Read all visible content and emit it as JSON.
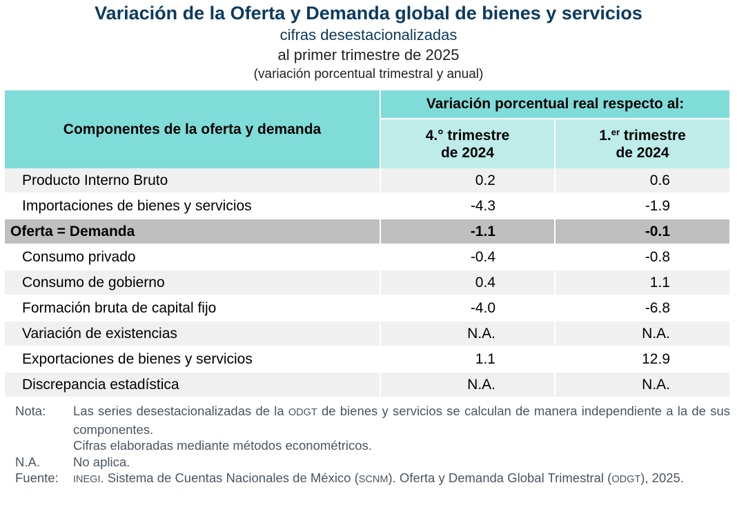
{
  "header": {
    "title": "Variación de la Oferta y Demanda global de bienes y servicios",
    "subtitle": "cifras desestacionalizadas",
    "period": "al primer trimestre de 2025",
    "unit_note": "(variación porcentual trimestral y anual)"
  },
  "colors": {
    "title": "#0c3a60",
    "header_dark": "#80dcd8",
    "header_light": "#bdece9",
    "row_gray": "#f0f0f0",
    "row_total": "#bfbfbf"
  },
  "table": {
    "col_components": "Componentes de la oferta y demanda",
    "col_group": "Variación porcentual real respecto al:",
    "col1": {
      "prefix": "4.° trimestre",
      "line2": "de 2024"
    },
    "col2": {
      "num": "1.",
      "sup": "er",
      "rest": " trimestre",
      "line2": "de 2024"
    },
    "rows": [
      {
        "label": "Producto Interno Bruto",
        "q4": "0.2",
        "q1": "0.6"
      },
      {
        "label": "Importaciones de bienes y servicios",
        "q4": "-4.3",
        "q1": "-1.9"
      },
      {
        "label": "Oferta = Demanda",
        "q4": "-1.1",
        "q1": "-0.1"
      },
      {
        "label": "Consumo privado",
        "q4": "-0.4",
        "q1": "-0.8"
      },
      {
        "label": "Consumo de gobierno",
        "q4": "0.4",
        "q1": "1.1"
      },
      {
        "label": "Formación bruta de capital fijo",
        "q4": "-4.0",
        "q1": "-6.8"
      },
      {
        "label": "Variación de existencias",
        "q4": "N.A.",
        "q1": "N.A."
      },
      {
        "label": "Exportaciones de bienes y servicios",
        "q4": "1.1",
        "q1": "12.9"
      },
      {
        "label": "Discrepancia estadística",
        "q4": "N.A.",
        "q1": "N.A."
      }
    ]
  },
  "notes": {
    "nota_key": "Nota:",
    "nota_text_a": "Las series desestacionalizadas de la ",
    "nota_text_abbr": "ODGT",
    "nota_text_b": " de bienes y servicios se calculan de manera independiente a la de sus componentes.",
    "nota_text_2": "Cifras elaboradas mediante métodos econométricos.",
    "na_key": "N.A.",
    "na_text": "No aplica.",
    "fuente_key": "Fuente:",
    "fuente_abbr1": "INEGI",
    "fuente_text_a": ". Sistema de Cuentas Nacionales de México (",
    "fuente_abbr2": "SCNM",
    "fuente_text_b": "). Oferta y Demanda Global Trimestral (",
    "fuente_abbr3": "ODGT",
    "fuente_text_c": "), 2025."
  }
}
